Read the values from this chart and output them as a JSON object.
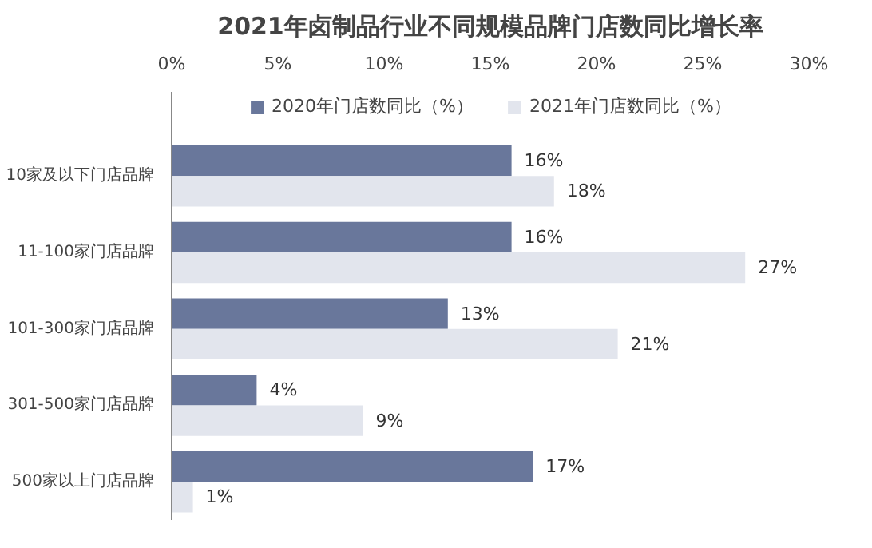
{
  "chart_data": {
    "type": "bar",
    "orientation": "horizontal",
    "title": "2021年卤制品行业不同规模品牌门店数同比增长率",
    "categories": [
      "10家及以下门店品牌",
      "11-100家门店品牌",
      "101-300家门店品牌",
      "301-500家门店品牌",
      "500家以上门店品牌"
    ],
    "series": [
      {
        "name": "2020年门店数同比（%）",
        "color": "#69779b",
        "values": [
          16,
          16,
          13,
          4,
          17
        ],
        "value_labels": [
          "16%",
          "16%",
          "13%",
          "4%",
          "17%"
        ]
      },
      {
        "name": "2021年门店数同比（%）",
        "color": "#e2e5ed",
        "values": [
          18,
          27,
          21,
          9,
          1
        ],
        "value_labels": [
          "18%",
          "27%",
          "21%",
          "9%",
          "1%"
        ]
      }
    ],
    "xlim": [
      0,
      30
    ],
    "xticks": [
      {
        "value": 0,
        "label": "0%"
      },
      {
        "value": 5,
        "label": "5%"
      },
      {
        "value": 10,
        "label": "10%"
      },
      {
        "value": 15,
        "label": "15%"
      },
      {
        "value": 20,
        "label": "20%"
      },
      {
        "value": 25,
        "label": "25%"
      },
      {
        "value": 30,
        "label": "30%"
      }
    ],
    "grid": false,
    "legend": "top"
  }
}
